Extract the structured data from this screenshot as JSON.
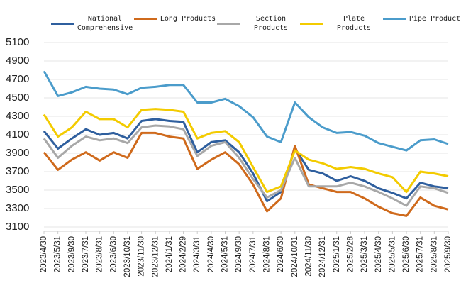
{
  "chart_data": {
    "type": "line",
    "categories": [
      "2023/4/30",
      "2023/5/31",
      "2023/9/30",
      "2023/7/31",
      "2023/8/31",
      "2023/6/30",
      "2023/10/31",
      "2023/11/30",
      "2023/12/31",
      "2024/1/31",
      "2024/2/29",
      "2024/3/31",
      "2024/4/30",
      "2024/5/31",
      "2024/9/30",
      "2024/7/31",
      "2024/8/31",
      "2024/6/30",
      "2024/10/31",
      "2024/11/30",
      "2024/12/31",
      "2025/1/31",
      "2025/2/28",
      "2025/3/31",
      "2025/4/30",
      "2025/5/31",
      "2025/6/30",
      "2025/7/31",
      "2025/8/31",
      "2025/9/30"
    ],
    "series": [
      {
        "name": "National Comprehensive",
        "color": "#2f5f9e",
        "values": [
          4140,
          3950,
          4060,
          4160,
          4100,
          4120,
          4060,
          4250,
          4270,
          4250,
          4240,
          3910,
          4020,
          4040,
          3910,
          3680,
          3380,
          3480,
          3950,
          3720,
          3680,
          3600,
          3650,
          3600,
          3520,
          3470,
          3410,
          3580,
          3540,
          3520
        ]
      },
      {
        "name": "Long Products",
        "color": "#cf6a1c",
        "values": [
          3910,
          3720,
          3830,
          3910,
          3820,
          3910,
          3850,
          4120,
          4120,
          4080,
          4060,
          3730,
          3830,
          3910,
          3780,
          3560,
          3270,
          3410,
          3980,
          3560,
          3520,
          3480,
          3480,
          3410,
          3320,
          3250,
          3220,
          3420,
          3330,
          3290
        ]
      },
      {
        "name": "Section Products",
        "color": "#a8a8a8",
        "values": [
          4060,
          3850,
          3980,
          4080,
          4040,
          4060,
          4010,
          4180,
          4200,
          4190,
          4160,
          3870,
          3980,
          4020,
          3850,
          3620,
          3420,
          3500,
          3850,
          3540,
          3540,
          3540,
          3580,
          3540,
          3480,
          3410,
          3330,
          3540,
          3520,
          3470
        ]
      },
      {
        "name": "Plate Products",
        "color": "#f3cb00",
        "values": [
          4320,
          4080,
          4180,
          4350,
          4270,
          4270,
          4180,
          4370,
          4380,
          4370,
          4350,
          4060,
          4120,
          4140,
          4020,
          3750,
          3480,
          3540,
          3930,
          3830,
          3790,
          3730,
          3750,
          3730,
          3680,
          3640,
          3480,
          3700,
          3680,
          3650
        ]
      },
      {
        "name": "Pipe Products",
        "color": "#4b9ccb",
        "values": [
          4790,
          4520,
          4560,
          4620,
          4600,
          4590,
          4540,
          4610,
          4620,
          4640,
          4640,
          4450,
          4450,
          4490,
          4410,
          4290,
          4080,
          4020,
          4450,
          4290,
          4180,
          4120,
          4130,
          4090,
          4010,
          3970,
          3930,
          4040,
          4050,
          4000
        ]
      }
    ],
    "ylim": [
      3100,
      5100
    ],
    "yticks": [
      3100,
      3300,
      3500,
      3700,
      3900,
      4100,
      4300,
      4500,
      4700,
      4900,
      5100
    ],
    "grid": true
  }
}
